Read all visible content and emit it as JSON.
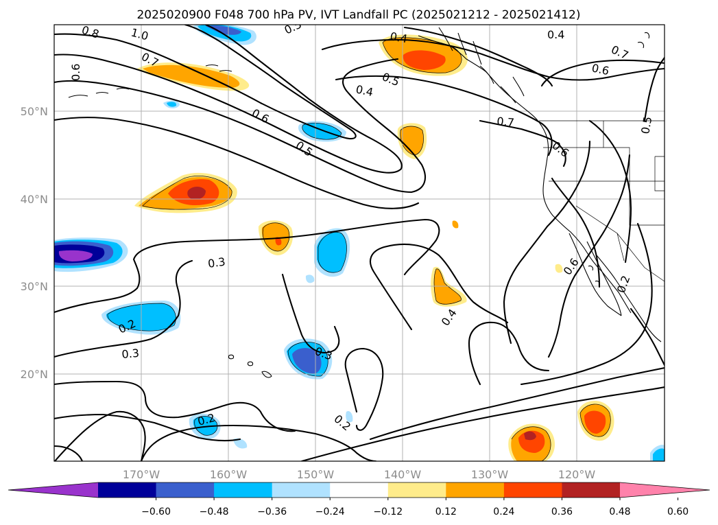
{
  "title": "2025020900 F048 700 hPa PV, IVT Landfall PC (2025021212 - 2025021412)",
  "lon_labels": [
    "170°W",
    "160°W",
    "150°W",
    "140°W",
    "130°W",
    "120°W"
  ],
  "lat_labels": [
    "50°N",
    "40°N",
    "30°N",
    "20°N"
  ],
  "colorbar": {
    "ticks": [
      "−0.60",
      "−0.48",
      "−0.36",
      "−0.24",
      "−0.12",
      "0.12",
      "0.24",
      "0.36",
      "0.48",
      "0.60"
    ],
    "colors": [
      "#9933cc",
      "#000099",
      "#3a5fcd",
      "#00bfff",
      "#b0e2ff",
      "#ffffff",
      "#ffec8b",
      "#ffa500",
      "#ff4500",
      "#b22222",
      "#ff82ab"
    ]
  },
  "contour_labels": [
    "0.8",
    "1.0",
    "0.7",
    "0.6",
    "0.5",
    "0.4",
    "0.5",
    "0.4",
    "0.4",
    "0.7",
    "0.6",
    "0.6",
    "0.5",
    "0.7",
    "0.6",
    "0.5",
    "0.3",
    "0.2",
    "0.3",
    "0.3",
    "0.4",
    "0.6",
    "0.2",
    "0.2",
    "0.2"
  ]
}
